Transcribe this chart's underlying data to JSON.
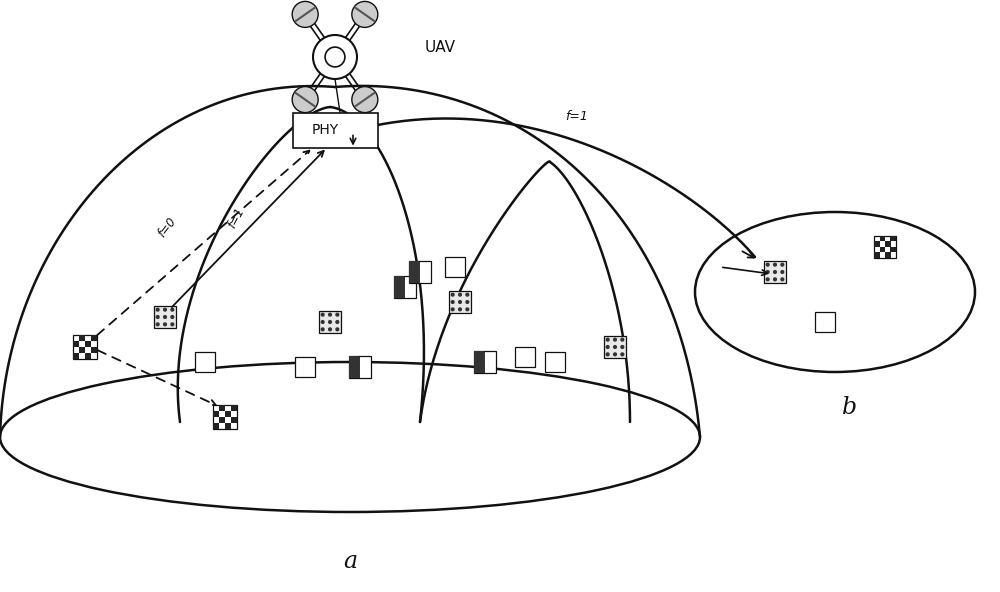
{
  "uav_label": "UAV",
  "phy_label": "PHY",
  "area_a_label": "a",
  "area_b_label": "b",
  "f0_label": "f=0",
  "f1_label": "f=1",
  "f1_right_label": "f=1",
  "background": "#ffffff",
  "line_color": "#111111"
}
